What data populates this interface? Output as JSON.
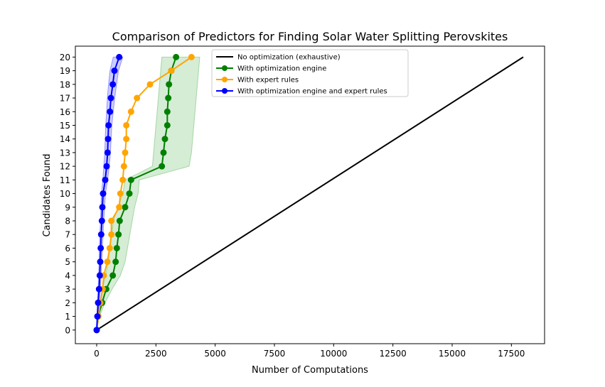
{
  "chart_data": {
    "type": "line",
    "title": "Comparison of Predictors for Finding Solar Water Splitting Perovskites",
    "xlabel": "Number of Computations",
    "ylabel": "Candidates Found",
    "xlim": [
      -900,
      18900
    ],
    "ylim": [
      -1,
      20.8
    ],
    "xticks": [
      0,
      2500,
      5000,
      7500,
      10000,
      12500,
      15000,
      17500
    ],
    "yticks": [
      0,
      1,
      2,
      3,
      4,
      5,
      6,
      7,
      8,
      9,
      10,
      11,
      12,
      13,
      14,
      15,
      16,
      17,
      18,
      19,
      20
    ],
    "grid": false,
    "legend_position": "top-center",
    "series": [
      {
        "name": "No optimization (exhaustive)",
        "color": "#000000",
        "markers": false,
        "x": [
          0,
          18000
        ],
        "y": [
          0,
          20
        ]
      },
      {
        "name": "With optimization engine",
        "color": "#008000",
        "markers": true,
        "x": [
          0,
          60,
          230,
          400,
          680,
          800,
          850,
          920,
          970,
          1200,
          1380,
          1450,
          2750,
          2820,
          2880,
          2980,
          2980,
          3020,
          3050,
          3150,
          3350
        ],
        "y": [
          0,
          1,
          2,
          3,
          4,
          5,
          6,
          7,
          8,
          9,
          10,
          11,
          12,
          13,
          14,
          15,
          16,
          17,
          18,
          19,
          20
        ],
        "band": {
          "color": "#2ca02c",
          "lower": [
            0,
            30,
            140,
            230,
            380,
            480,
            560,
            630,
            700,
            900,
            1100,
            1200,
            2350,
            2400,
            2450,
            2500,
            2550,
            2600,
            2650,
            2700,
            2750
          ],
          "upper": [
            0,
            120,
            350,
            650,
            1000,
            1200,
            1300,
            1400,
            1500,
            1600,
            1750,
            1800,
            3900,
            4000,
            4050,
            4100,
            4150,
            4200,
            4250,
            4300,
            4350
          ]
        }
      },
      {
        "name": "With expert rules",
        "color": "#ffa500",
        "markers": true,
        "x": [
          0,
          70,
          150,
          250,
          300,
          450,
          550,
          620,
          620,
          950,
          1000,
          1100,
          1150,
          1200,
          1250,
          1250,
          1450,
          1700,
          2250,
          3150,
          4000
        ],
        "y": [
          0,
          1,
          2,
          3,
          4,
          5,
          6,
          7,
          8,
          9,
          10,
          11,
          12,
          13,
          14,
          15,
          16,
          17,
          18,
          19,
          20
        ]
      },
      {
        "name": "With optimization engine and expert rules",
        "color": "#0000ff",
        "markers": true,
        "x": [
          0,
          30,
          60,
          100,
          130,
          150,
          170,
          190,
          220,
          240,
          270,
          360,
          420,
          460,
          480,
          500,
          560,
          600,
          680,
          750,
          950
        ],
        "y": [
          0,
          1,
          2,
          3,
          4,
          5,
          6,
          7,
          8,
          9,
          10,
          11,
          12,
          13,
          14,
          15,
          16,
          17,
          18,
          19,
          20
        ],
        "band": {
          "color": "#0000ff",
          "lower": [
            0,
            10,
            30,
            60,
            80,
            100,
            110,
            130,
            160,
            180,
            200,
            260,
            300,
            340,
            360,
            380,
            420,
            450,
            500,
            560,
            700
          ],
          "upper": [
            0,
            60,
            110,
            160,
            190,
            210,
            240,
            270,
            300,
            330,
            370,
            460,
            530,
            580,
            610,
            640,
            700,
            760,
            840,
            920,
            1100
          ]
        }
      }
    ]
  }
}
